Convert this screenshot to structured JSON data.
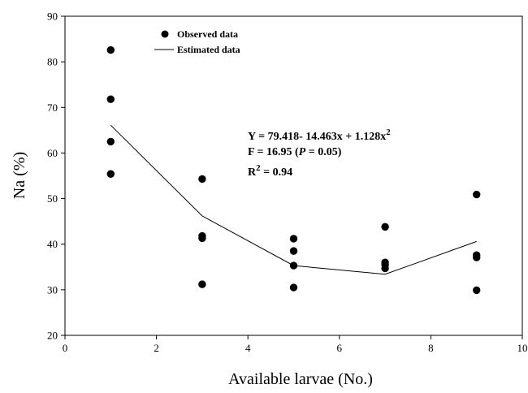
{
  "chart_data": {
    "type": "scatter",
    "xlabel": "Available larvae (No.)",
    "ylabel": "Na (%)",
    "xlim": [
      0,
      10
    ],
    "ylim": [
      20,
      90
    ],
    "xticks": [
      "0",
      "2",
      "4",
      "6",
      "8",
      "10"
    ],
    "yticks": [
      "20",
      "30",
      "40",
      "50",
      "60",
      "70",
      "80",
      "90"
    ],
    "grid": false,
    "legend_position": "top-left",
    "series": [
      {
        "name": "Observed data",
        "style": "markers",
        "x": [
          1,
          1,
          1,
          1,
          3,
          3,
          3,
          3,
          5,
          5,
          5,
          5,
          7,
          7,
          7,
          7,
          9,
          9,
          9,
          9
        ],
        "y": [
          82.6,
          71.8,
          62.5,
          55.4,
          54.3,
          41.8,
          41.3,
          31.2,
          41.2,
          38.5,
          35.3,
          30.5,
          43.8,
          36.0,
          35.5,
          34.7,
          50.9,
          37.6,
          37.1,
          29.9
        ]
      },
      {
        "name": "Estimated data",
        "style": "line",
        "x": [
          1,
          3,
          5,
          7,
          9
        ],
        "y": [
          66.1,
          46.2,
          35.3,
          33.4,
          40.6
        ]
      }
    ],
    "annotation": {
      "equation_main": "Y = 79.418- 14.463x + 1.128x",
      "equation_sup": "2",
      "f_prefix": "F = 16.95 (",
      "f_p": "P",
      "f_suffix": " = 0.05)",
      "r2_main": "R",
      "r2_sup": "2",
      "r2_suffix": " = 0.94"
    }
  }
}
